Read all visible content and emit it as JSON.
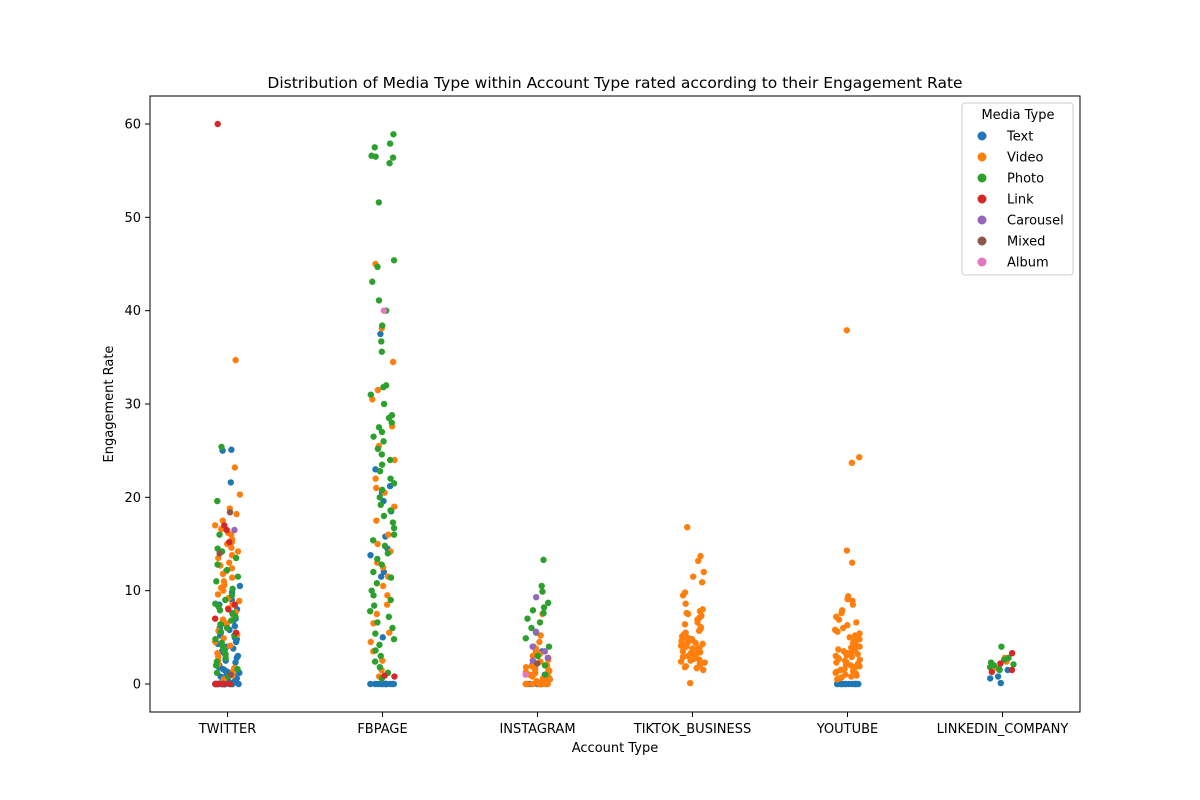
{
  "chart_data": {
    "type": "scatter",
    "title": "Distribution of Media Type within Account Type rated according to their Engagement Rate",
    "xlabel": "Account Type",
    "ylabel": "Engagement Rate",
    "categories": [
      "TWITTER",
      "FBPAGE",
      "INSTAGRAM",
      "TIKTOK_BUSINESS",
      "YOUTUBE",
      "LINKEDIN_COMPANY"
    ],
    "ylim": [
      -3,
      63
    ],
    "yticks": [
      0,
      10,
      20,
      30,
      40,
      50,
      60
    ],
    "grid": false,
    "legend": {
      "title": "Media Type",
      "placement": "top-right"
    },
    "series": [
      {
        "name": "Text",
        "color": "#1f77b4",
        "points": {
          "TWITTER": [
            25.1,
            25.0,
            21.6,
            10.5,
            9.8,
            9.0,
            8.5,
            8.0,
            7.5,
            7.0,
            6.8,
            6.5,
            6.2,
            6.0,
            5.8,
            5.5,
            5.2,
            5.0,
            4.8,
            4.5,
            4.3,
            4.0,
            3.8,
            3.6,
            3.5,
            3.3,
            3.0,
            2.8,
            2.6,
            2.5,
            2.3,
            2.0,
            1.8,
            1.6,
            1.5,
            1.3,
            1.2,
            1.0,
            0.9,
            0.8,
            0.7,
            0.6,
            0.5,
            0.4,
            0.3,
            0.2,
            0.1,
            0,
            0,
            0,
            0,
            0,
            0,
            0,
            0,
            0,
            0,
            0,
            0,
            0,
            0,
            0,
            0,
            0,
            0,
            0
          ],
          "FBPAGE": [
            37.5,
            23.0,
            21.2,
            20.5,
            19.6,
            18.5,
            15.8,
            14.5,
            13.8,
            12.0,
            11.5,
            5.0,
            0,
            0,
            0,
            0,
            0,
            0,
            0,
            0,
            0,
            0,
            0,
            0,
            0
          ],
          "INSTAGRAM": [
            3.5,
            2.0,
            1.0,
            0.5,
            0,
            0,
            0,
            0,
            0
          ],
          "YOUTUBE": [
            0,
            0,
            0,
            0,
            0,
            0,
            0,
            0,
            0,
            0,
            0,
            0,
            0
          ],
          "LINKEDIN_COMPANY": [
            0.1,
            0.6,
            0.8,
            1.5
          ]
        }
      },
      {
        "name": "Video",
        "color": "#ff7f0e",
        "points": {
          "TWITTER": [
            34.7,
            23.2,
            20.3,
            18.8,
            18.2,
            17.5,
            17.0,
            16.6,
            16.2,
            16.0,
            15.5,
            15.2,
            15.0,
            14.6,
            14.2,
            13.8,
            13.5,
            13.0,
            12.7,
            12.4,
            12.1,
            11.8,
            11.4,
            11.0,
            10.6,
            10.3,
            10.0,
            9.6,
            9.2,
            8.9,
            8.5,
            8.1,
            7.7,
            7.3,
            6.9,
            6.5,
            6.1,
            5.7,
            5.3,
            4.9,
            4.5,
            4.1,
            3.7,
            3.3,
            2.9,
            2.5,
            2.1,
            1.7,
            1.3,
            0.9,
            0.5
          ],
          "FBPAGE": [
            45.0,
            38.1,
            34.5,
            31.5,
            30.5,
            27.6,
            25.5,
            24.0,
            22.0,
            21.0,
            20.5,
            19.0,
            17.5,
            16.0,
            15.0,
            14.2,
            13.0,
            12.5,
            11.5,
            10.5,
            9.5,
            8.5,
            7.5,
            6.5,
            5.5,
            4.5,
            3.5,
            2.5,
            1.5,
            0.8
          ],
          "INSTAGRAM": [
            7.5,
            5.2,
            4.5,
            4.0,
            3.8,
            3.5,
            3.2,
            3.0,
            2.8,
            2.6,
            2.4,
            2.2,
            2.0,
            1.9,
            1.8,
            1.7,
            1.6,
            1.5,
            1.4,
            1.3,
            1.2,
            1.1,
            1.0,
            0.9,
            0.8,
            0.7,
            0.6,
            0.5,
            0.4,
            0.3,
            0.2,
            0.1,
            0,
            0,
            0,
            0,
            0,
            0,
            0,
            0,
            0,
            0
          ],
          "TIKTOK_BUSINESS": [
            16.8,
            13.7,
            13.2,
            12.0,
            11.5,
            10.9,
            9.8,
            9.5,
            8.6,
            8.0,
            7.8,
            7.6,
            7.5,
            7.3,
            7.1,
            6.9,
            6.6,
            6.4,
            6.1,
            5.9,
            5.7,
            5.5,
            5.3,
            5.1,
            5.0,
            4.9,
            4.8,
            4.7,
            4.6,
            4.5,
            4.4,
            4.3,
            4.2,
            4.1,
            4.0,
            3.9,
            3.8,
            3.7,
            3.6,
            3.5,
            3.4,
            3.3,
            3.2,
            3.1,
            3.0,
            2.9,
            2.8,
            2.7,
            2.6,
            2.5,
            2.4,
            2.3,
            2.2,
            2.0,
            1.9,
            1.8,
            1.7,
            1.5,
            0.1
          ],
          "YOUTUBE": [
            37.9,
            24.3,
            23.7,
            14.3,
            13.0,
            9.4,
            9.1,
            8.9,
            8.5,
            7.9,
            7.6,
            7.2,
            6.9,
            6.6,
            6.3,
            6.0,
            5.8,
            5.6,
            5.4,
            5.2,
            5.0,
            4.8,
            4.6,
            4.4,
            4.2,
            4.0,
            3.9,
            3.8,
            3.7,
            3.6,
            3.5,
            3.4,
            3.3,
            3.2,
            3.1,
            3.0,
            2.9,
            2.8,
            2.7,
            2.6,
            2.5,
            2.4,
            2.3,
            2.2,
            2.1,
            2.0,
            1.9,
            1.8,
            1.7,
            1.6,
            1.5,
            1.4,
            1.3,
            1.2,
            1.1,
            1.0,
            0.9,
            0.8,
            0.7,
            0.6,
            0.5
          ],
          "LINKEDIN_COMPANY": [
            2.8,
            2.6,
            2.4,
            2.0,
            1.7
          ]
        }
      },
      {
        "name": "Photo",
        "color": "#2ca02c",
        "points": {
          "TWITTER": [
            25.4,
            19.6,
            16.0,
            14.5,
            14.2,
            13.5,
            12.8,
            12.2,
            11.5,
            11.0,
            10.2,
            9.5,
            9.0,
            8.6,
            8.3,
            7.9,
            7.6,
            7.2,
            6.8,
            6.4,
            6.0,
            5.6,
            5.2,
            4.8,
            4.4,
            4.0,
            3.6,
            3.2,
            2.8,
            2.4,
            2.0,
            1.6,
            1.2,
            0.8
          ],
          "FBPAGE": [
            58.9,
            57.9,
            57.5,
            56.6,
            56.5,
            56.4,
            55.8,
            51.6,
            45.4,
            44.7,
            43.1,
            41.1,
            40.0,
            38.4,
            36.7,
            35.6,
            32.0,
            31.8,
            31.0,
            30.0,
            28.8,
            28.5,
            28.0,
            27.5,
            27.0,
            26.5,
            26.0,
            25.2,
            24.6,
            24.0,
            23.5,
            22.8,
            22.0,
            21.5,
            20.8,
            20.0,
            19.2,
            18.6,
            18.0,
            17.3,
            16.7,
            16.0,
            15.4,
            14.8,
            14.0,
            13.4,
            12.8,
            12.0,
            11.4,
            10.8,
            10.0,
            9.5,
            9.0,
            8.4,
            7.8,
            7.2,
            6.6,
            6.0,
            5.4,
            4.8,
            4.2,
            3.6,
            3.0,
            2.4,
            1.8,
            1.2,
            0.6
          ],
          "INSTAGRAM": [
            13.3,
            10.5,
            9.9,
            8.7,
            8.2,
            7.9,
            7.6,
            7.0,
            6.6,
            6.0,
            5.5,
            4.9,
            4.0,
            3.0,
            2.0,
            1.0
          ],
          "LINKEDIN_COMPANY": [
            4.0,
            2.8,
            2.6,
            2.3,
            2.1,
            2.0,
            1.8,
            1.6,
            1.5
          ]
        }
      },
      {
        "name": "Link",
        "color": "#d62728",
        "points": {
          "TWITTER": [
            60.0,
            17.0,
            16.5,
            15.2,
            8.5,
            8.0,
            7.0,
            5.5,
            0,
            0,
            0,
            0,
            0,
            0,
            0,
            0
          ],
          "FBPAGE": [
            0.8,
            0.9
          ],
          "LINKEDIN_COMPANY": [
            3.3,
            2.2,
            1.5,
            1.3
          ]
        }
      },
      {
        "name": "Carousel",
        "color": "#9467bd",
        "points": {
          "TWITTER": [
            16.5
          ],
          "INSTAGRAM": [
            9.3,
            5.6,
            4.0,
            3.5,
            2.8,
            2.5
          ]
        }
      },
      {
        "name": "Mixed",
        "color": "#8c564b",
        "points": {
          "TWITTER": [
            18.4,
            14.0,
            1.0
          ],
          "INSTAGRAM": [
            2.2
          ]
        }
      },
      {
        "name": "Album",
        "color": "#e377c2",
        "points": {
          "FBPAGE": [
            40.0
          ],
          "INSTAGRAM": [
            1.0
          ]
        }
      }
    ]
  }
}
